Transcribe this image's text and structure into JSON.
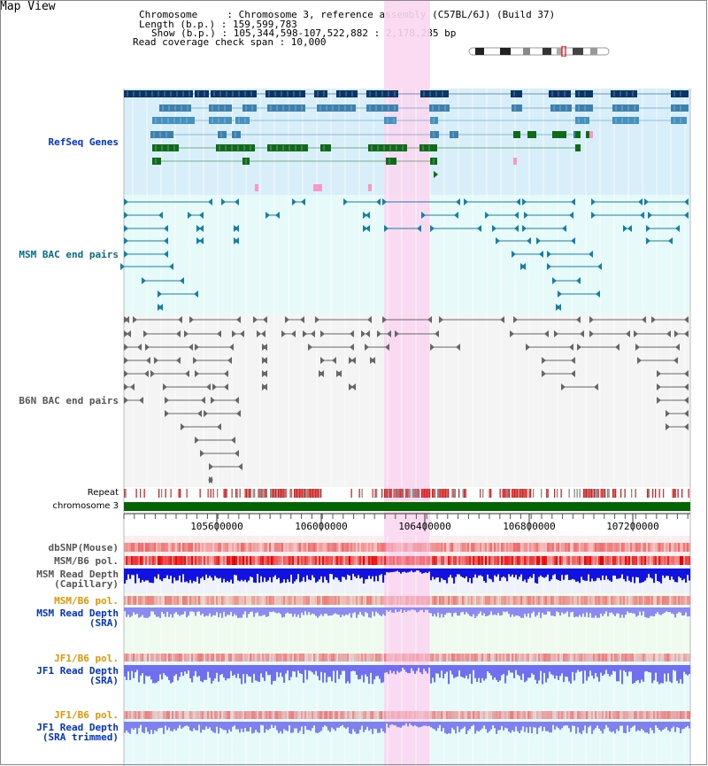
{
  "view_title": "Map View",
  "header": {
    "chromosome": "Chromosome     : Chromosome 3, reference assembly (C57BL/6J) (Build 37)",
    "length": "Length (b.p.) : 159,599,783",
    "show": "Show (b.p.) : 105,344,598-107,522,882 : 2,178,285 bp",
    "coverage": "Read coverage check span : 10,000"
  },
  "tracks": {
    "refseq": "RefSeq Genes",
    "msm_bac": "MSM BAC end pairs",
    "b6n_bac": "B6N BAC end pairs",
    "repeat": "Repeat",
    "chromosome": "chromosome 3",
    "dbsnp": "dbSNP(Mouse)",
    "msm_b6_pol": "MSM/B6 pol.",
    "msm_read_cap_1": "MSM Read Depth",
    "msm_read_cap_2": "(Capillary)",
    "msm_b6_pol_sra": "MSM/B6 pol.",
    "msm_read_sra_1": "MSM Read Depth",
    "msm_read_sra_2": "(SRA)",
    "jf1_b6_pol": "JF1/B6 pol.",
    "jf1_read_sra_1": "JF1 Read Depth",
    "jf1_read_sra_2": "(SRA)",
    "jf1_b6_pol_trim": "JF1/B6 pol.",
    "jf1_read_trim_1": "JF1 Read Depth",
    "jf1_read_trim_2": "(SRA trimmed)"
  },
  "axis_ticks": [
    "105600000",
    "106000000",
    "106400000",
    "106800000",
    "107200000"
  ],
  "colors": {
    "refseq_bg": "#d8effa",
    "msm_bg": "#e6fafa",
    "highlight": "#f9d7f1",
    "chrom_green": "#006600",
    "label_blue": "#0033cc",
    "label_teal": "#006f8a",
    "label_gray": "#555555",
    "label_orange": "#e69500"
  }
}
